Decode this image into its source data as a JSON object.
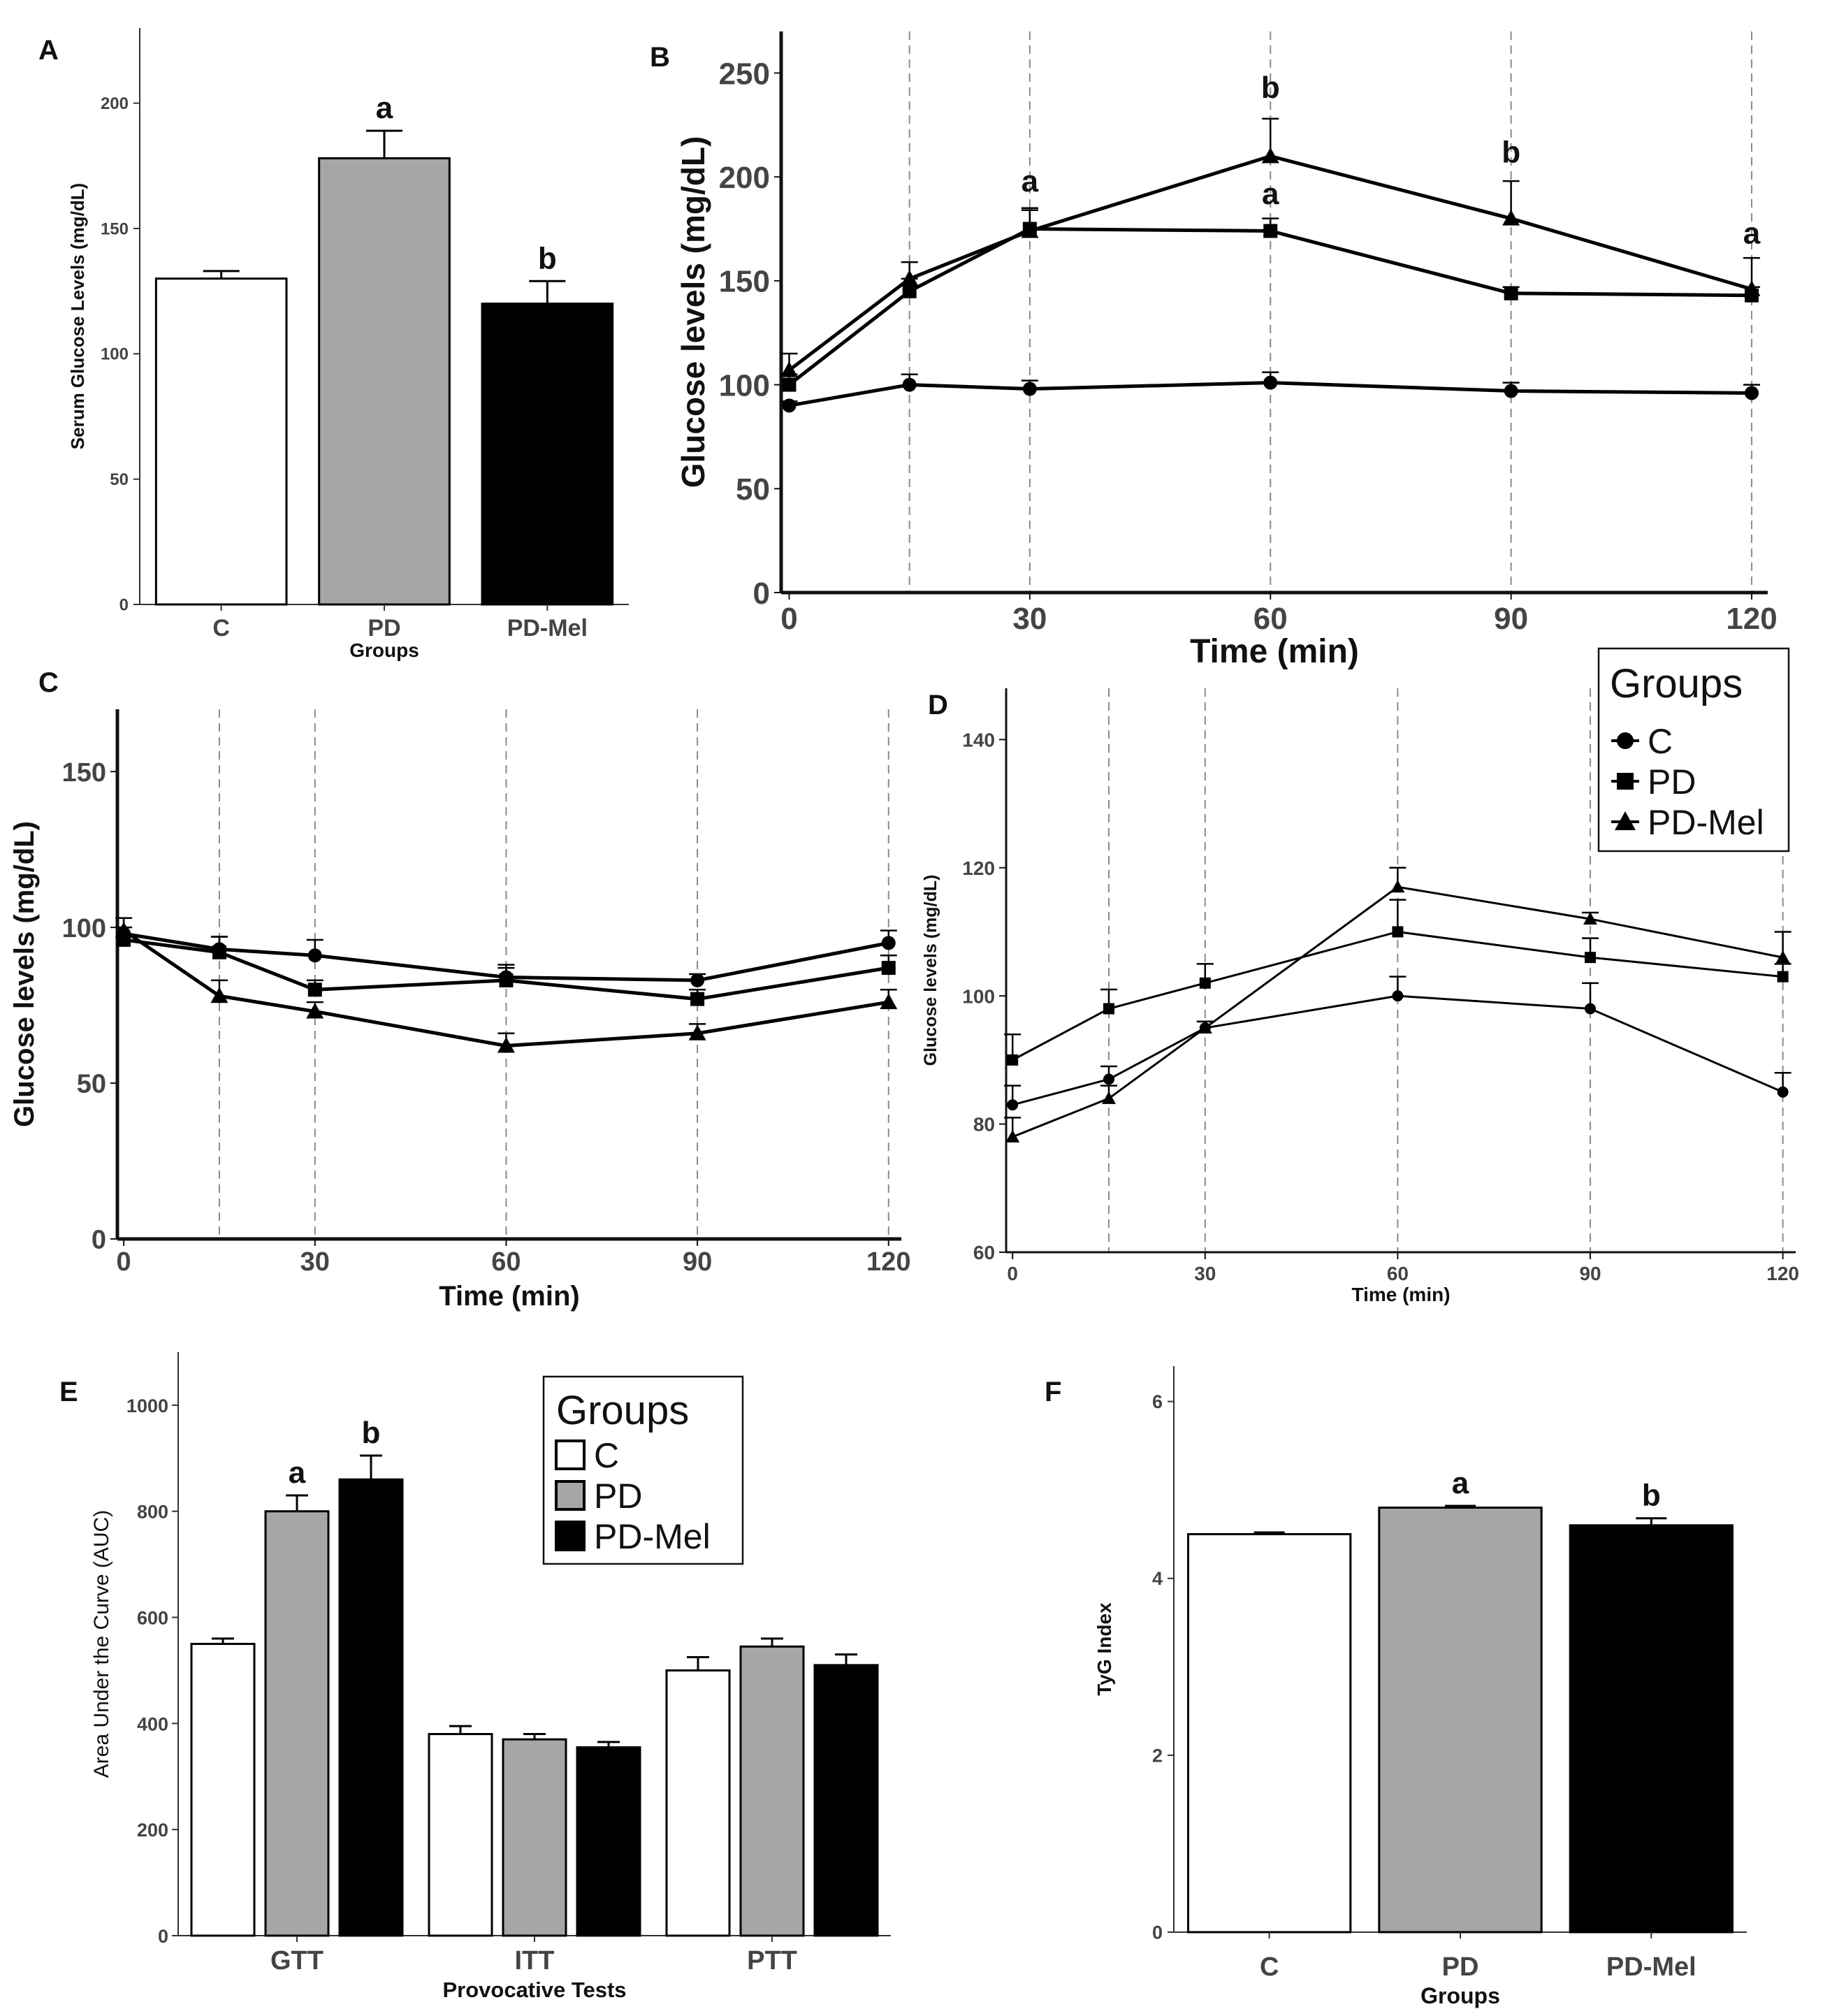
{
  "chart_data": [
    {
      "panel": "A",
      "type": "bar",
      "categories": [
        "C",
        "PD",
        "PD-Mel"
      ],
      "values": [
        130,
        178,
        120
      ],
      "errors": [
        3,
        11,
        9
      ],
      "fills": [
        "#ffffff",
        "#a6a6a6",
        "#000000"
      ],
      "labels": [
        "",
        "a",
        "b"
      ],
      "xlabel": "Groups",
      "ylabel": "Serum Glucose Levels (mg/dL)",
      "ylim": [
        0,
        230
      ],
      "yticks": [
        0,
        50,
        100,
        150,
        200
      ]
    },
    {
      "panel": "B",
      "type": "line",
      "x": [
        0,
        15,
        30,
        60,
        90,
        120
      ],
      "series": [
        {
          "name": "C",
          "marker": "circle",
          "values": [
            90,
            100,
            98,
            101,
            97,
            96
          ],
          "errors": [
            2,
            5,
            4,
            5,
            4,
            4
          ]
        },
        {
          "name": "PD",
          "marker": "square",
          "values": [
            100,
            145,
            175,
            174,
            144,
            143
          ],
          "errors": [
            5,
            6,
            10,
            6,
            3,
            4
          ]
        },
        {
          "name": "PD-Mel",
          "marker": "triangle",
          "values": [
            107,
            151,
            174,
            210,
            180,
            146
          ],
          "errors": [
            8,
            8,
            10,
            18,
            18,
            15
          ]
        }
      ],
      "labels": [
        {
          "x": 30,
          "text": "a",
          "at": 193
        },
        {
          "x": 60,
          "text": "b",
          "at": 238
        },
        {
          "x": 60,
          "text": "a",
          "at": 187
        },
        {
          "x": 90,
          "text": "b",
          "at": 207
        },
        {
          "x": 120,
          "text": "a",
          "at": 168
        }
      ],
      "xlabel": "Time (min)",
      "ylabel": "Glucose levels (mg/dL)",
      "xlim": [
        -1,
        122
      ],
      "ylim": [
        0,
        270
      ],
      "xticks": [
        0,
        30,
        60,
        90,
        120
      ],
      "yticks": [
        0,
        50,
        100,
        150,
        200,
        250
      ],
      "vlines": [
        15,
        30,
        60,
        90,
        120
      ]
    },
    {
      "panel": "C",
      "type": "line",
      "x": [
        0,
        15,
        30,
        60,
        90,
        120
      ],
      "series": [
        {
          "name": "C",
          "marker": "circle",
          "values": [
            98,
            93,
            91,
            84,
            83,
            95
          ],
          "errors": [
            5,
            4,
            5,
            4,
            2,
            4
          ]
        },
        {
          "name": "PD",
          "marker": "square",
          "values": [
            96,
            92,
            80,
            83,
            77,
            87
          ],
          "errors": [
            4,
            5,
            3,
            4,
            3,
            4
          ]
        },
        {
          "name": "PD-Mel",
          "marker": "triangle",
          "values": [
            99,
            78,
            73,
            62,
            66,
            76
          ],
          "errors": [
            4,
            5,
            3,
            4,
            3,
            4
          ]
        }
      ],
      "xlabel": "Time (min)",
      "ylabel": "Glucose levels (mg/dL)",
      "xlim": [
        -1,
        122
      ],
      "ylim": [
        0,
        170
      ],
      "xticks": [
        0,
        30,
        60,
        90,
        120
      ],
      "yticks": [
        0,
        50,
        100,
        150
      ],
      "vlines": [
        15,
        30,
        60,
        90,
        120
      ]
    },
    {
      "panel": "D",
      "type": "line",
      "x": [
        0,
        15,
        30,
        60,
        90,
        120
      ],
      "series": [
        {
          "name": "C",
          "marker": "circle",
          "values": [
            83,
            87,
            95,
            100,
            98,
            85
          ],
          "errors": [
            3,
            2,
            1,
            3,
            4,
            3
          ]
        },
        {
          "name": "PD",
          "marker": "square",
          "values": [
            90,
            98,
            102,
            110,
            106,
            103
          ],
          "errors": [
            4,
            3,
            3,
            5,
            3,
            2
          ]
        },
        {
          "name": "PD-Mel",
          "marker": "triangle",
          "values": [
            78,
            84,
            95,
            117,
            112,
            106
          ],
          "errors": [
            3,
            2,
            1,
            3,
            1,
            4
          ]
        }
      ],
      "xlabel": "Time (min)",
      "ylabel": "Glucose levels (mg/dL)",
      "xlim": [
        -1,
        122
      ],
      "ylim": [
        60,
        148
      ],
      "xticks": [
        0,
        30,
        60,
        90,
        120
      ],
      "yticks": [
        60,
        80,
        100,
        120,
        140
      ],
      "vlines": [
        15,
        30,
        60,
        90,
        120
      ],
      "legend": {
        "title": "Groups",
        "entries": [
          "C",
          "PD",
          "PD-Mel"
        ],
        "placement": "top-right"
      }
    },
    {
      "panel": "E",
      "type": "bar",
      "categories": [
        "GTT",
        "ITT",
        "PTT"
      ],
      "series": [
        {
          "name": "C",
          "fill": "#ffffff",
          "values": [
            550,
            380,
            500
          ],
          "errors": [
            10,
            15,
            25
          ]
        },
        {
          "name": "PD",
          "fill": "#a6a6a6",
          "values": [
            800,
            370,
            545
          ],
          "errors": [
            30,
            10,
            15
          ]
        },
        {
          "name": "PD-Mel",
          "fill": "#000000",
          "values": [
            860,
            355,
            510
          ],
          "errors": [
            45,
            10,
            20
          ]
        }
      ],
      "labels": [
        {
          "category": "GTT",
          "series": "PD",
          "text": "a"
        },
        {
          "category": "GTT",
          "series": "PD-Mel",
          "text": "b"
        }
      ],
      "xlabel": "Provocative Tests",
      "ylabel": "Area Under the Curve (AUC)",
      "ylim": [
        0,
        1100
      ],
      "yticks": [
        0,
        200,
        400,
        600,
        800,
        1000
      ],
      "legend": {
        "title": "Groups",
        "entries": [
          "C",
          "PD",
          "PD-Mel"
        ],
        "placement": "top-right"
      }
    },
    {
      "panel": "F",
      "type": "bar",
      "categories": [
        "C",
        "PD",
        "PD-Mel"
      ],
      "values": [
        4.5,
        4.8,
        4.6
      ],
      "errors": [
        0.02,
        0.02,
        0.08
      ],
      "fills": [
        "#ffffff",
        "#a6a6a6",
        "#000000"
      ],
      "labels": [
        "",
        "a",
        "b"
      ],
      "xlabel": "Groups",
      "ylabel": "TyG Index",
      "ylim": [
        0,
        6.4
      ],
      "yticks": [
        0,
        2,
        4,
        6
      ]
    }
  ]
}
